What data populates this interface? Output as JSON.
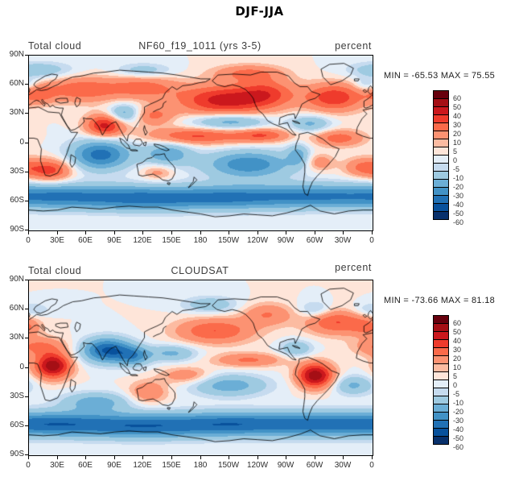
{
  "title": "DJF-JJA",
  "panels": [
    {
      "left_header": "Total cloud",
      "center_header": "NF60_f19_1011 (yrs 3-5)",
      "right_header": "percent",
      "stats": "MIN = -65.53 MAX =  75.55"
    },
    {
      "left_header": "Total cloud",
      "center_header": "CLOUDSAT",
      "right_header": "percent",
      "stats": "MIN = -73.66 MAX =  81.18"
    }
  ],
  "axes": {
    "lat_labels": [
      "90N",
      "60N",
      "30N",
      "0",
      "30S",
      "60S",
      "90S"
    ],
    "lon_labels": [
      "0",
      "30E",
      "60E",
      "90E",
      "120E",
      "150E",
      "180",
      "150W",
      "120W",
      "90W",
      "60W",
      "30W",
      "0"
    ]
  },
  "colorbar": {
    "labels": [
      "60",
      "50",
      "40",
      "30",
      "20",
      "10",
      "5",
      "0",
      "-5",
      "-10",
      "-20",
      "-30",
      "-40",
      "-50",
      "-60"
    ],
    "colors": [
      "#67000d",
      "#a50f15",
      "#cb181d",
      "#ef3b2c",
      "#fb6a4a",
      "#fc9272",
      "#fcbba1",
      "#fee5d9",
      "#e4eef8",
      "#c6dbef",
      "#9ecae1",
      "#6baed6",
      "#4292c6",
      "#2171b5",
      "#08519c",
      "#08306b"
    ],
    "side": "right"
  },
  "chart_data": [
    {
      "type": "heatmap",
      "title": "NF60_f19_1011 (yrs 3-5)",
      "variable": "Total cloud",
      "units": "percent",
      "season_diff": "DJF-JJA",
      "min": -65.53,
      "max": 75.55,
      "levels": [
        -60,
        -50,
        -40,
        -30,
        -20,
        -10,
        -5,
        0,
        5,
        10,
        20,
        30,
        40,
        50,
        60
      ],
      "lon_range": [
        0,
        360
      ],
      "lat_range": [
        -90,
        90
      ],
      "colorbar_side": "right",
      "estimated_features": [
        {
          "lon": 205,
          "lat": 44,
          "amp": 45,
          "sx": 35,
          "sy": 11
        },
        {
          "lon": 250,
          "lat": 52,
          "amp": 25,
          "sx": 20,
          "sy": 10
        },
        {
          "lon": 320,
          "lat": 47,
          "amp": 38,
          "sx": 22,
          "sy": 10
        },
        {
          "lon": 55,
          "lat": 55,
          "amp": 28,
          "sx": 28,
          "sy": 9
        },
        {
          "lon": 10,
          "lat": 50,
          "amp": 20,
          "sx": 12,
          "sy": 7
        },
        {
          "lon": 120,
          "lat": 57,
          "amp": 24,
          "sx": 25,
          "sy": 8
        },
        {
          "lon": 230,
          "lat": 72,
          "amp": 22,
          "sx": 25,
          "sy": 6
        },
        {
          "lon": 80,
          "lat": 18,
          "amp": 45,
          "sx": 14,
          "sy": 8
        },
        {
          "lon": 130,
          "lat": 28,
          "amp": 22,
          "sx": 15,
          "sy": 7
        },
        {
          "lon": 175,
          "lat": 7,
          "amp": 32,
          "sx": 35,
          "sy": 6
        },
        {
          "lon": 245,
          "lat": 8,
          "amp": 28,
          "sx": 20,
          "sy": 5
        },
        {
          "lon": 325,
          "lat": 5,
          "amp": 26,
          "sx": 18,
          "sy": 6
        },
        {
          "lon": 22,
          "lat": -28,
          "amp": 34,
          "sx": 16,
          "sy": 8
        },
        {
          "lon": 350,
          "lat": -25,
          "amp": 22,
          "sx": 14,
          "sy": 7
        },
        {
          "lon": 305,
          "lat": -20,
          "amp": 18,
          "sx": 10,
          "sy": 6
        },
        {
          "lon": 135,
          "lat": -30,
          "amp": 15,
          "sx": 12,
          "sy": 6
        },
        {
          "lon": 75,
          "lat": -12,
          "amp": -45,
          "sx": 22,
          "sy": 11
        },
        {
          "lon": 100,
          "lat": 30,
          "amp": -28,
          "sx": 12,
          "sy": 7
        },
        {
          "lon": 210,
          "lat": 22,
          "amp": -28,
          "sx": 28,
          "sy": 6
        },
        {
          "lon": 295,
          "lat": 20,
          "amp": -22,
          "sx": 15,
          "sy": 6
        },
        {
          "lon": 230,
          "lat": -22,
          "amp": -38,
          "sx": 32,
          "sy": 10
        },
        {
          "lon": 145,
          "lat": -11,
          "amp": -28,
          "sx": 18,
          "sy": 9
        },
        {
          "lon": 282,
          "lat": -12,
          "amp": -22,
          "sx": 8,
          "sy": 8
        },
        {
          "lon": 30,
          "lat": -55,
          "amp": -35,
          "sx": 45,
          "sy": 9
        },
        {
          "lon": 120,
          "lat": -57,
          "amp": -38,
          "sx": 45,
          "sy": 9
        },
        {
          "lon": 210,
          "lat": -56,
          "amp": -36,
          "sx": 45,
          "sy": 9
        },
        {
          "lon": 300,
          "lat": -55,
          "amp": -33,
          "sx": 45,
          "sy": 9
        },
        {
          "lon": 10,
          "lat": 75,
          "amp": -18,
          "sx": 25,
          "sy": 6
        },
        {
          "lon": 120,
          "lat": 75,
          "amp": -15,
          "sx": 20,
          "sy": 5
        },
        {
          "lon": 355,
          "lat": 60,
          "amp": -15,
          "sx": 10,
          "sy": 5
        }
      ]
    },
    {
      "type": "heatmap",
      "title": "CLOUDSAT",
      "variable": "Total cloud",
      "units": "percent",
      "season_diff": "DJF-JJA",
      "min": -73.66,
      "max": 81.18,
      "levels": [
        -60,
        -50,
        -40,
        -30,
        -20,
        -10,
        -5,
        0,
        5,
        10,
        20,
        30,
        40,
        50,
        60
      ],
      "lon_range": [
        0,
        360
      ],
      "lat_range": [
        -90,
        90
      ],
      "colorbar_side": "right",
      "estimated_features": [
        {
          "lon": 25,
          "lat": 2,
          "amp": 58,
          "sx": 13,
          "sy": 9
        },
        {
          "lon": 300,
          "lat": -8,
          "amp": 58,
          "sx": 13,
          "sy": 9
        },
        {
          "lon": 195,
          "lat": 38,
          "amp": 30,
          "sx": 28,
          "sy": 9
        },
        {
          "lon": 322,
          "lat": 47,
          "amp": 30,
          "sx": 22,
          "sy": 9
        },
        {
          "lon": 250,
          "lat": 55,
          "amp": 20,
          "sx": 18,
          "sy": 8
        },
        {
          "lon": 10,
          "lat": 22,
          "amp": 22,
          "sx": 20,
          "sy": 7
        },
        {
          "lon": 230,
          "lat": 8,
          "amp": 22,
          "sx": 25,
          "sy": 5
        },
        {
          "lon": 165,
          "lat": -8,
          "amp": 18,
          "sx": 18,
          "sy": 6
        },
        {
          "lon": 125,
          "lat": -25,
          "amp": 20,
          "sx": 14,
          "sy": 8
        },
        {
          "lon": 355,
          "lat": 42,
          "amp": 18,
          "sx": 12,
          "sy": 6
        },
        {
          "lon": 82,
          "lat": 18,
          "amp": -52,
          "sx": 18,
          "sy": 9
        },
        {
          "lon": 110,
          "lat": 12,
          "amp": -30,
          "sx": 12,
          "sy": 7
        },
        {
          "lon": 150,
          "lat": 15,
          "amp": -22,
          "sx": 18,
          "sy": 6
        },
        {
          "lon": 210,
          "lat": -18,
          "amp": -26,
          "sx": 28,
          "sy": 8
        },
        {
          "lon": 340,
          "lat": -18,
          "amp": -22,
          "sx": 15,
          "sy": 7
        },
        {
          "lon": 70,
          "lat": -35,
          "amp": -25,
          "sx": 25,
          "sy": 7
        },
        {
          "lon": 30,
          "lat": -58,
          "amp": -40,
          "sx": 45,
          "sy": 9
        },
        {
          "lon": 120,
          "lat": -60,
          "amp": -40,
          "sx": 45,
          "sy": 9
        },
        {
          "lon": 210,
          "lat": -58,
          "amp": -40,
          "sx": 45,
          "sy": 9
        },
        {
          "lon": 300,
          "lat": -58,
          "amp": -38,
          "sx": 45,
          "sy": 9
        },
        {
          "lon": 280,
          "lat": 20,
          "amp": -20,
          "sx": 12,
          "sy": 6
        },
        {
          "lon": 190,
          "lat": 65,
          "amp": -18,
          "sx": 20,
          "sy": 6
        },
        {
          "lon": 300,
          "lat": 60,
          "amp": -15,
          "sx": 12,
          "sy": 6
        },
        {
          "lon": 0,
          "lat": 60,
          "amp": -12,
          "sx": 15,
          "sy": 5
        }
      ]
    }
  ]
}
